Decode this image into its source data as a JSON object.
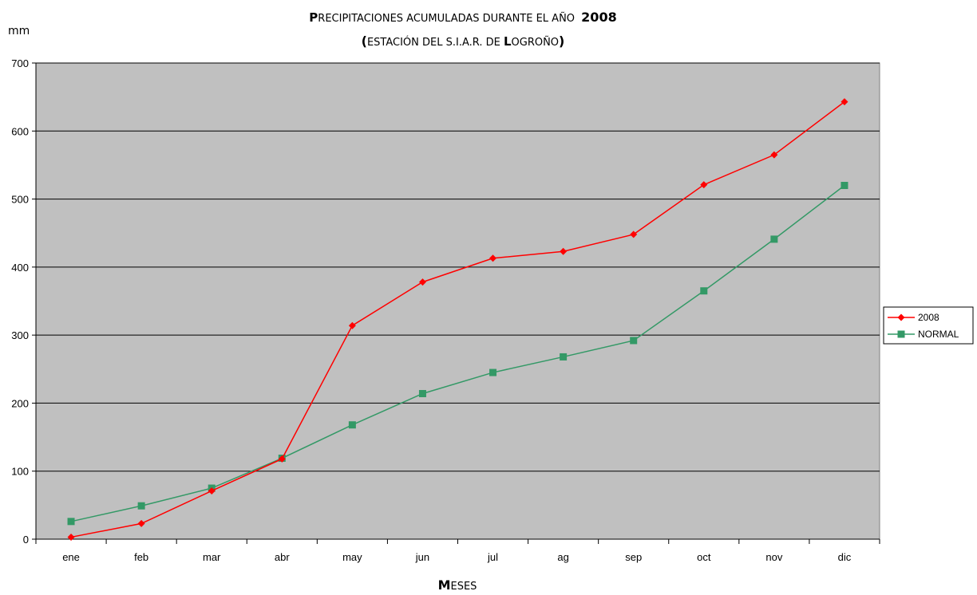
{
  "chart_data": {
    "type": "line",
    "title_line1": {
      "lead": "P",
      "rest": "RECIPITACIONES ACUMULADAS DURANTE EL AÑO ",
      "year": "2008"
    },
    "title_line2": {
      "open": "(",
      "rest1": "ESTACIÓN DEL S.I.A.R. DE ",
      "L": "L",
      "rest2": "OGROÑO",
      "close": ")"
    },
    "ylabel": "mm",
    "xlabel": {
      "lead": "M",
      "rest": "ESES"
    },
    "categories": [
      "ene",
      "feb",
      "mar",
      "abr",
      "may",
      "jun",
      "jul",
      "ag",
      "sep",
      "oct",
      "nov",
      "dic"
    ],
    "ylim": [
      0,
      700
    ],
    "yticks": [
      0,
      100,
      200,
      300,
      400,
      500,
      600,
      700
    ],
    "grid": true,
    "legend_position": "right",
    "plot_background": "#C0C0C0",
    "series": [
      {
        "name": "2008",
        "color": "#FF0000",
        "marker": "diamond",
        "values": [
          3,
          23,
          71,
          118,
          314,
          378,
          413,
          423,
          448,
          521,
          565,
          643
        ]
      },
      {
        "name": "NORMAL",
        "color": "#339966",
        "marker": "square",
        "values": [
          26,
          49,
          75,
          119,
          168,
          214,
          245,
          268,
          292,
          365,
          441,
          520
        ]
      }
    ]
  }
}
